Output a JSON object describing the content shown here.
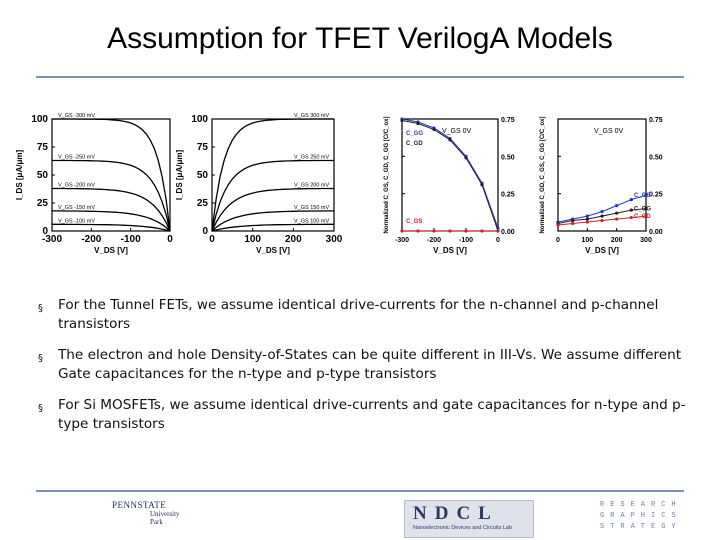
{
  "slide": {
    "title": "Assumption for TFET VerilogA Models",
    "bullets": [
      "For the Tunnel FETs, we assume identical drive-currents for the n-channel and p-channel transistors",
      "The electron and hole Density-of-States can be quite different in III-Vs. We assume different Gate capacitances for the n-type and p-type transistors",
      "For Si MOSFETs, we assume identical drive-currents and gate capacitances for n-type and p-type transistors"
    ],
    "bullet_glyph": "§"
  },
  "chart_data": [
    {
      "type": "line",
      "ylabel": "I_DS [μA/μm]",
      "xlabel": "V_DS [V]",
      "xticks": [
        "-300",
        "-200",
        "-100",
        "0"
      ],
      "yticks": [
        "0",
        "25",
        "50",
        "75",
        "100"
      ],
      "xlim": [
        -300,
        0
      ],
      "ylim": [
        0,
        100
      ],
      "series": [
        {
          "name": "V_GS -300 mV",
          "sat": 100
        },
        {
          "name": "V_GS -250 mV",
          "sat": 63
        },
        {
          "name": "V_GS -200 mV",
          "sat": 38
        },
        {
          "name": "V_GS -150 mV",
          "sat": 18
        },
        {
          "name": "V_GS -100 mV",
          "sat": 6
        }
      ]
    },
    {
      "type": "line",
      "ylabel": "I_DS [μA/μm]",
      "xlabel": "V_DS [V]",
      "xticks": [
        "0",
        "100",
        "200",
        "300"
      ],
      "yticks": [
        "0",
        "25",
        "50",
        "75",
        "100"
      ],
      "xlim": [
        0,
        300
      ],
      "ylim": [
        0,
        100
      ],
      "series": [
        {
          "name": "V_GS 300 mV",
          "sat": 100
        },
        {
          "name": "V_GS 250 mV",
          "sat": 63
        },
        {
          "name": "V_GS 200 mV",
          "sat": 38
        },
        {
          "name": "V_GS 150 mV",
          "sat": 18
        },
        {
          "name": "V_GS 100 mV",
          "sat": 6
        }
      ]
    },
    {
      "type": "scatter",
      "ylabel": "Normalized C_GS, C_GD, C_GG [C/C_ox]",
      "xlabel": "V_DS [V]",
      "annotation": "V_GS 0V",
      "xticks": [
        "-300",
        "-200",
        "-100",
        "0"
      ],
      "yticks": [
        "0.00",
        "0.25",
        "0.50",
        "0.75"
      ],
      "xlim": [
        -300,
        0
      ],
      "ylim": [
        0,
        0.75
      ],
      "series": [
        {
          "name": "C_GG",
          "color": "#2233cc",
          "x": [
            -300,
            -250,
            -200,
            -150,
            -100,
            -50,
            0
          ],
          "y": [
            0.75,
            0.73,
            0.69,
            0.62,
            0.5,
            0.32,
            0.02
          ]
        },
        {
          "name": "C_GD",
          "color": "#222222",
          "x": [
            -300,
            -250,
            -200,
            -150,
            -100,
            -50,
            0
          ],
          "y": [
            0.74,
            0.72,
            0.68,
            0.61,
            0.49,
            0.31,
            0.0
          ]
        },
        {
          "name": "C_GS",
          "color": "#cc2222",
          "x": [
            -300,
            -250,
            -200,
            -150,
            -100,
            -50,
            0
          ],
          "y": [
            0.0,
            0.0,
            0.0,
            0.0,
            0.0,
            0.0,
            0.0
          ]
        }
      ]
    },
    {
      "type": "scatter",
      "ylabel": "Normalized C_GD, C_GS, C_GG [C/C_ox]",
      "xlabel": "V_DS [V]",
      "annotation": "V_GS 0V",
      "xticks": [
        "0",
        "100",
        "200",
        "300"
      ],
      "yticks": [
        "0.00",
        "0.25",
        "0.50",
        "0.75"
      ],
      "xlim": [
        0,
        300
      ],
      "ylim": [
        0,
        0.75
      ],
      "series": [
        {
          "name": "C_GS",
          "color": "#2233cc",
          "x": [
            0,
            50,
            100,
            150,
            200,
            250,
            300
          ],
          "y": [
            0.06,
            0.08,
            0.1,
            0.13,
            0.17,
            0.21,
            0.24
          ]
        },
        {
          "name": "C_GG",
          "color": "#222222",
          "x": [
            0,
            50,
            100,
            150,
            200,
            250,
            300
          ],
          "y": [
            0.05,
            0.07,
            0.08,
            0.1,
            0.12,
            0.14,
            0.15
          ]
        },
        {
          "name": "C_GD",
          "color": "#cc2222",
          "x": [
            0,
            50,
            100,
            150,
            200,
            250,
            300
          ],
          "y": [
            0.04,
            0.05,
            0.06,
            0.07,
            0.08,
            0.09,
            0.1
          ]
        }
      ]
    }
  ],
  "footer": {
    "psu_name": "PENNSTATE",
    "psu_campus": "University Park",
    "ndcl_name": "NDCL",
    "ndcl_caption": "Nanoelectronic Devices and Circuits Lab",
    "rg_lines": [
      "RESEARCH",
      "GRAPHICS",
      "STRATEGY"
    ]
  }
}
